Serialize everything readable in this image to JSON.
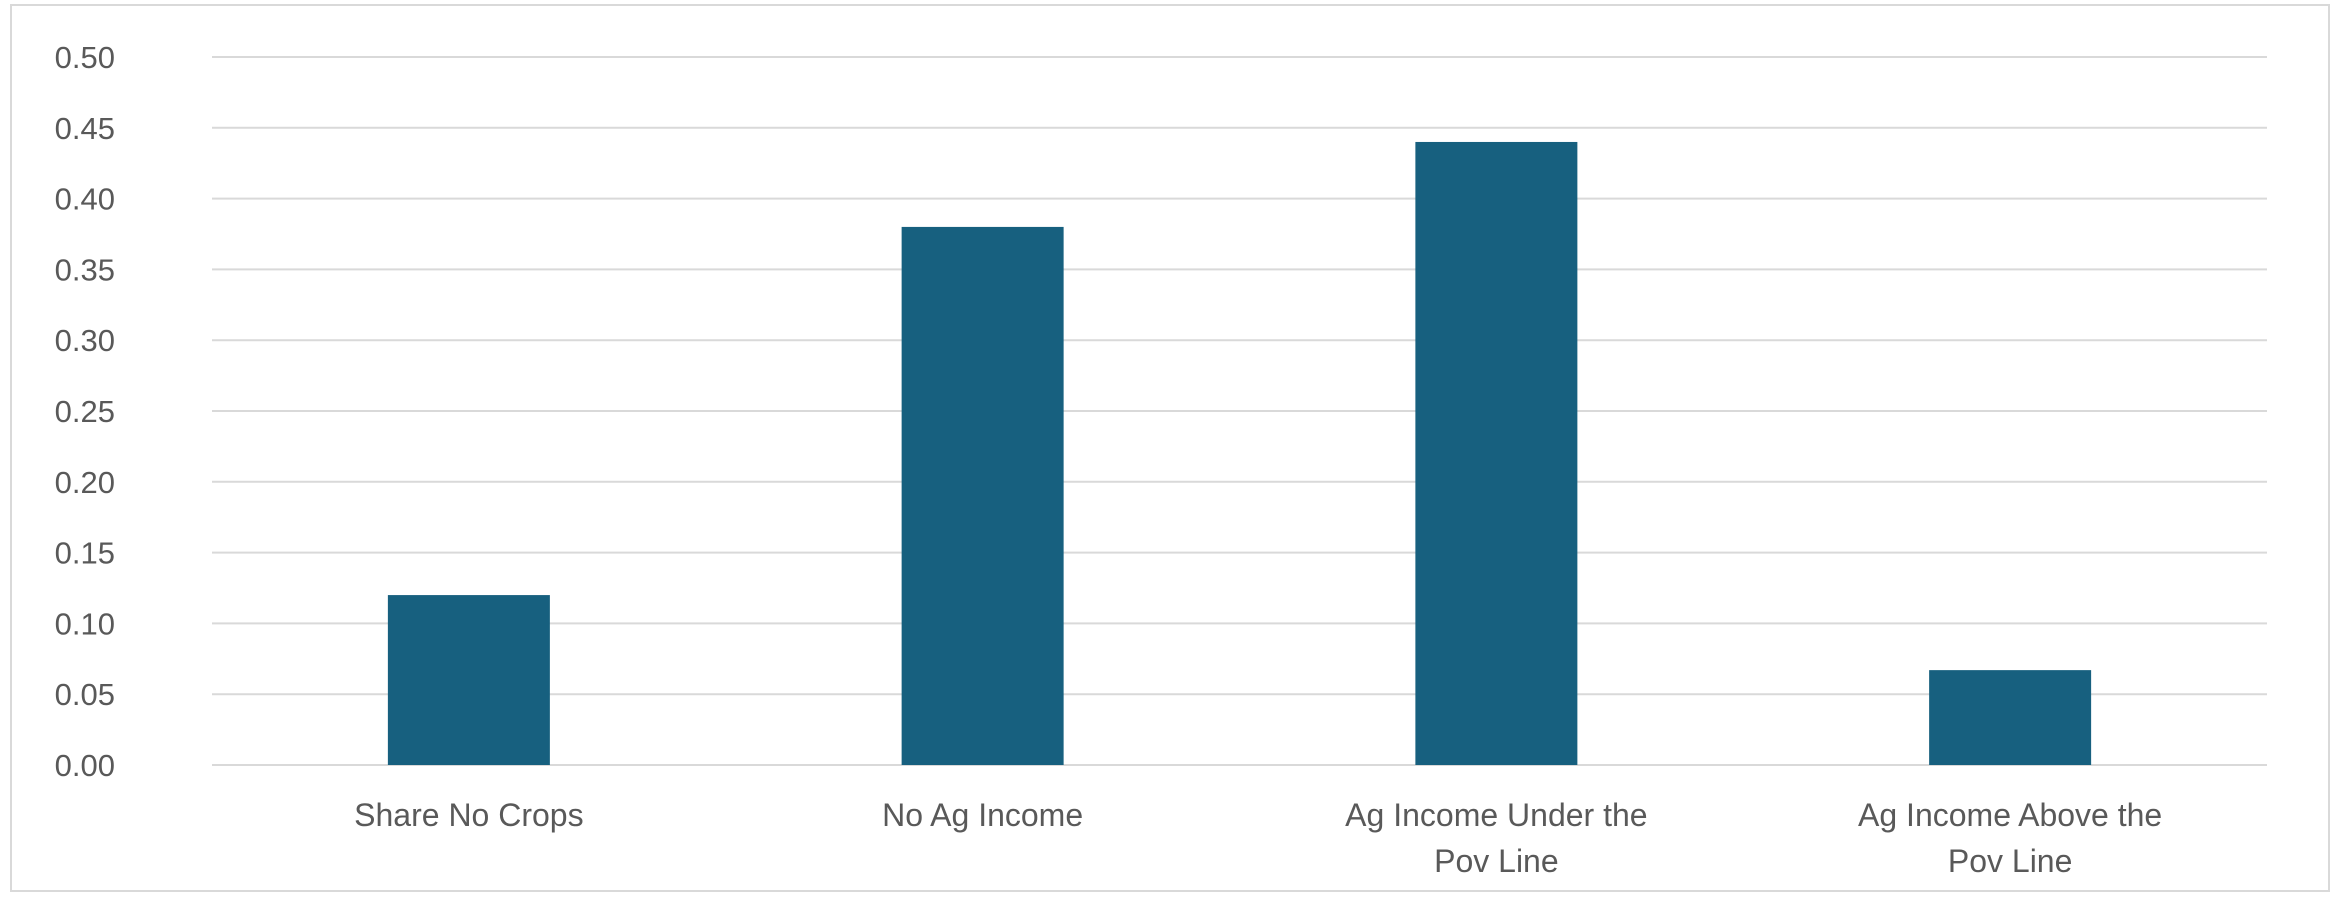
{
  "chart_data": {
    "type": "bar",
    "title": "",
    "xlabel": "",
    "ylabel": "",
    "categories": [
      [
        "Share No Crops"
      ],
      [
        "No Ag Income"
      ],
      [
        "Ag Income Under the",
        "Pov Line"
      ],
      [
        "Ag Income Above the",
        "Pov Line"
      ]
    ],
    "values": [
      0.12,
      0.38,
      0.44,
      0.067
    ],
    "ylim": [
      0,
      0.5
    ],
    "yticks": [
      "0.00",
      "0.05",
      "0.10",
      "0.15",
      "0.20",
      "0.25",
      "0.30",
      "0.35",
      "0.40",
      "0.45",
      "0.50"
    ],
    "grid": true,
    "legend": "none",
    "bar_color": "#17607f",
    "grid_color": "#d9d9d9",
    "text_color": "#595959"
  }
}
